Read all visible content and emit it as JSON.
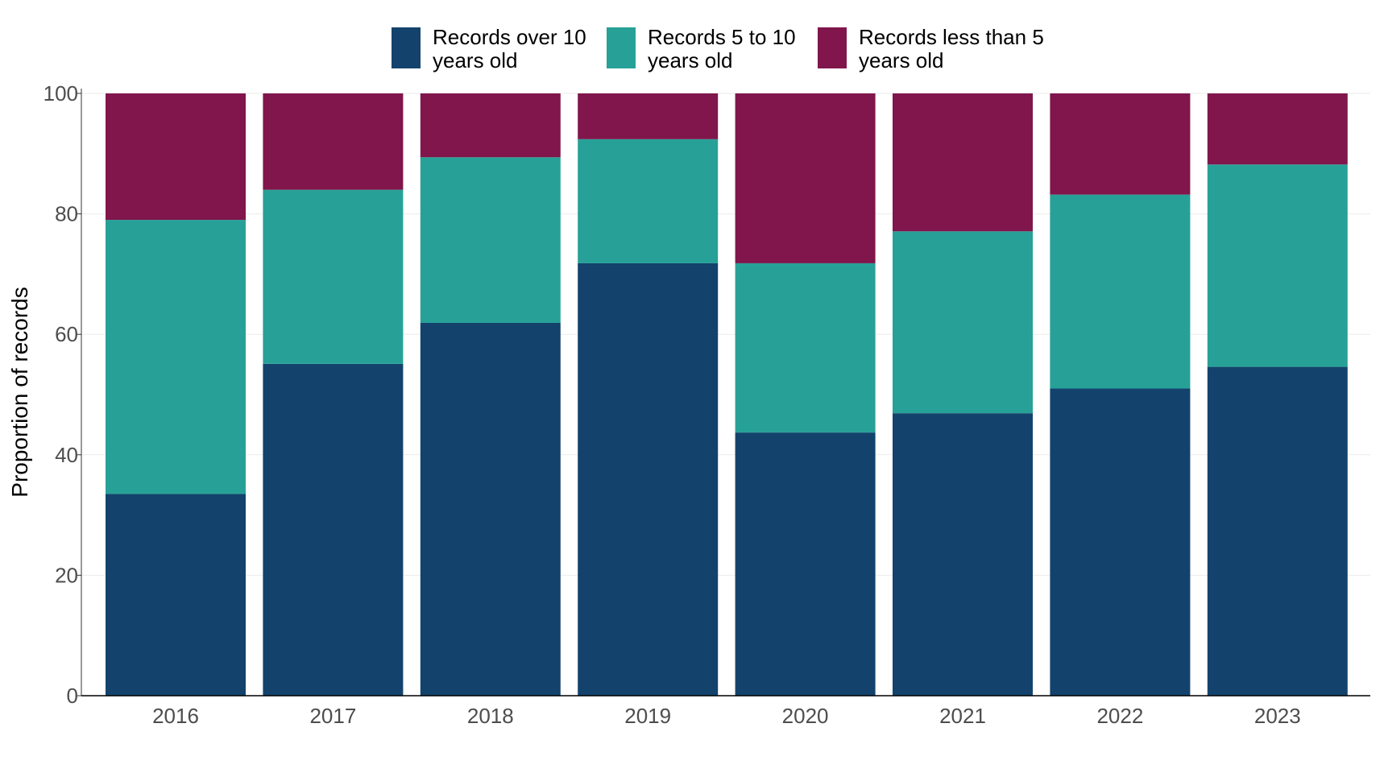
{
  "chart_data": {
    "type": "bar",
    "stacked": true,
    "categories": [
      "2016",
      "2017",
      "2018",
      "2019",
      "2020",
      "2021",
      "2022",
      "2023"
    ],
    "series": [
      {
        "name": "Records over 10 years old",
        "name_lines": [
          "Records over 10",
          "years old"
        ],
        "color": "#13436c",
        "values": [
          33.5,
          55.1,
          61.9,
          71.8,
          43.7,
          46.9,
          51.0,
          54.6
        ]
      },
      {
        "name": "Records 5 to 10 years old",
        "name_lines": [
          "Records 5 to 10",
          "years old"
        ],
        "color": "#27a197",
        "values": [
          45.5,
          28.9,
          27.5,
          20.6,
          28.1,
          30.2,
          32.2,
          33.6
        ]
      },
      {
        "name": "Records less than 5 years old",
        "name_lines": [
          "Records less than 5",
          "years old"
        ],
        "color": "#80164b",
        "values": [
          21.0,
          16.0,
          10.6,
          7.6,
          28.2,
          22.9,
          16.8,
          11.8
        ]
      }
    ],
    "title": "",
    "xlabel": "",
    "ylabel": "Proportion of records",
    "ylim": [
      0,
      100
    ],
    "yticks": [
      "0",
      "20",
      "40",
      "60",
      "80",
      "100"
    ],
    "grid": true,
    "legend_position": "top"
  }
}
